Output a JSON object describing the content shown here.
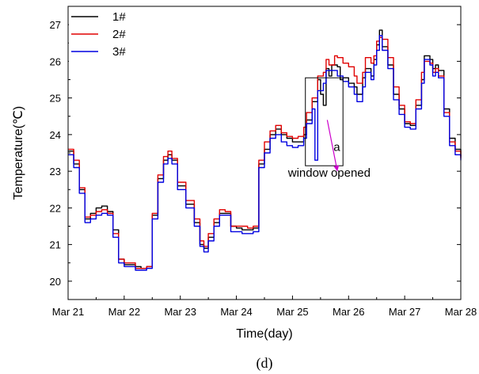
{
  "chart_data": {
    "type": "line",
    "title": "",
    "caption": "(d)",
    "xlabel": "Time(day)",
    "ylabel": "Temperature(℃)",
    "xlim": [
      0,
      7
    ],
    "ylim": [
      19.5,
      27.5
    ],
    "x_ticks": [
      0,
      1,
      2,
      3,
      4,
      5,
      6,
      7
    ],
    "x_tick_labels": [
      "Mar 21",
      "Mar 22",
      "Mar 23",
      "Mar 24",
      "Mar 25",
      "Mar 26",
      "Mar 27",
      "Mar 28"
    ],
    "y_ticks": [
      20,
      21,
      22,
      23,
      24,
      25,
      26,
      27
    ],
    "y_tick_labels": [
      "20",
      "21",
      "22",
      "23",
      "24",
      "25",
      "26",
      "27"
    ],
    "legend_position": "top-left",
    "grid": false,
    "series": [
      {
        "name": "1#",
        "color": "#000000",
        "points": [
          [
            0,
            23.55
          ],
          [
            0.1,
            23.2
          ],
          [
            0.2,
            22.5
          ],
          [
            0.3,
            21.7
          ],
          [
            0.4,
            21.85
          ],
          [
            0.5,
            22.0
          ],
          [
            0.6,
            22.05
          ],
          [
            0.7,
            21.9
          ],
          [
            0.8,
            21.4
          ],
          [
            0.9,
            20.6
          ],
          [
            1.0,
            20.45
          ],
          [
            1.1,
            20.45
          ],
          [
            1.2,
            20.4
          ],
          [
            1.3,
            20.35
          ],
          [
            1.4,
            20.4
          ],
          [
            1.5,
            21.8
          ],
          [
            1.6,
            22.8
          ],
          [
            1.7,
            23.3
          ],
          [
            1.78,
            23.45
          ],
          [
            1.85,
            23.3
          ],
          [
            1.95,
            22.6
          ],
          [
            2.1,
            22.1
          ],
          [
            2.25,
            21.6
          ],
          [
            2.35,
            21.0
          ],
          [
            2.42,
            20.9
          ],
          [
            2.5,
            21.2
          ],
          [
            2.6,
            21.6
          ],
          [
            2.7,
            21.85
          ],
          [
            2.8,
            21.85
          ],
          [
            2.9,
            21.5
          ],
          [
            3.0,
            21.45
          ],
          [
            3.1,
            21.4
          ],
          [
            3.2,
            21.4
          ],
          [
            3.3,
            21.45
          ],
          [
            3.4,
            23.2
          ],
          [
            3.5,
            23.6
          ],
          [
            3.6,
            24.0
          ],
          [
            3.7,
            24.15
          ],
          [
            3.8,
            24.0
          ],
          [
            3.9,
            23.9
          ],
          [
            4.0,
            23.8
          ],
          [
            4.1,
            23.8
          ],
          [
            4.2,
            24.0
          ],
          [
            4.25,
            24.4
          ],
          [
            4.35,
            24.9
          ],
          [
            4.45,
            25.5
          ],
          [
            4.5,
            25.1
          ],
          [
            4.55,
            24.8
          ],
          [
            4.6,
            25.8
          ],
          [
            4.65,
            25.6
          ],
          [
            4.7,
            25.9
          ],
          [
            4.8,
            25.85
          ],
          [
            4.85,
            25.5
          ],
          [
            4.9,
            25.55
          ],
          [
            5.0,
            25.4
          ],
          [
            5.1,
            25.3
          ],
          [
            5.15,
            25.1
          ],
          [
            5.25,
            25.55
          ],
          [
            5.3,
            25.8
          ],
          [
            5.4,
            25.6
          ],
          [
            5.45,
            26.05
          ],
          [
            5.5,
            26.45
          ],
          [
            5.55,
            26.85
          ],
          [
            5.6,
            26.4
          ],
          [
            5.7,
            25.9
          ],
          [
            5.8,
            25.1
          ],
          [
            5.9,
            24.7
          ],
          [
            6.0,
            24.3
          ],
          [
            6.1,
            24.25
          ],
          [
            6.2,
            24.8
          ],
          [
            6.3,
            25.5
          ],
          [
            6.35,
            26.15
          ],
          [
            6.45,
            26.05
          ],
          [
            6.5,
            25.8
          ],
          [
            6.55,
            25.9
          ],
          [
            6.6,
            25.75
          ],
          [
            6.7,
            24.7
          ],
          [
            6.8,
            23.9
          ],
          [
            6.9,
            23.6
          ],
          [
            7.0,
            23.4
          ]
        ]
      },
      {
        "name": "2#",
        "color": "#e00000",
        "points": [
          [
            0,
            23.6
          ],
          [
            0.1,
            23.3
          ],
          [
            0.2,
            22.55
          ],
          [
            0.3,
            21.75
          ],
          [
            0.4,
            21.8
          ],
          [
            0.5,
            21.9
          ],
          [
            0.6,
            21.95
          ],
          [
            0.7,
            21.85
          ],
          [
            0.8,
            21.3
          ],
          [
            0.9,
            20.6
          ],
          [
            1.0,
            20.5
          ],
          [
            1.1,
            20.5
          ],
          [
            1.2,
            20.35
          ],
          [
            1.3,
            20.35
          ],
          [
            1.4,
            20.4
          ],
          [
            1.5,
            21.85
          ],
          [
            1.6,
            22.9
          ],
          [
            1.7,
            23.4
          ],
          [
            1.78,
            23.55
          ],
          [
            1.85,
            23.35
          ],
          [
            1.95,
            22.7
          ],
          [
            2.1,
            22.2
          ],
          [
            2.25,
            21.7
          ],
          [
            2.35,
            21.1
          ],
          [
            2.42,
            20.95
          ],
          [
            2.5,
            21.3
          ],
          [
            2.6,
            21.7
          ],
          [
            2.7,
            21.95
          ],
          [
            2.8,
            21.9
          ],
          [
            2.9,
            21.5
          ],
          [
            3.0,
            21.5
          ],
          [
            3.1,
            21.5
          ],
          [
            3.2,
            21.45
          ],
          [
            3.3,
            21.5
          ],
          [
            3.4,
            23.3
          ],
          [
            3.5,
            23.8
          ],
          [
            3.6,
            24.1
          ],
          [
            3.7,
            24.25
          ],
          [
            3.8,
            24.05
          ],
          [
            3.9,
            23.95
          ],
          [
            4.0,
            23.9
          ],
          [
            4.1,
            23.95
          ],
          [
            4.2,
            24.2
          ],
          [
            4.25,
            24.6
          ],
          [
            4.35,
            25.0
          ],
          [
            4.45,
            25.6
          ],
          [
            4.55,
            25.7
          ],
          [
            4.6,
            26.05
          ],
          [
            4.65,
            25.9
          ],
          [
            4.75,
            26.15
          ],
          [
            4.8,
            26.1
          ],
          [
            4.9,
            25.95
          ],
          [
            5.0,
            25.85
          ],
          [
            5.1,
            25.6
          ],
          [
            5.15,
            25.4
          ],
          [
            5.25,
            25.7
          ],
          [
            5.3,
            26.1
          ],
          [
            5.4,
            25.95
          ],
          [
            5.45,
            26.15
          ],
          [
            5.5,
            26.55
          ],
          [
            5.55,
            26.65
          ],
          [
            5.6,
            26.6
          ],
          [
            5.7,
            26.1
          ],
          [
            5.8,
            25.3
          ],
          [
            5.9,
            24.8
          ],
          [
            6.0,
            24.35
          ],
          [
            6.1,
            24.3
          ],
          [
            6.2,
            24.95
          ],
          [
            6.3,
            25.7
          ],
          [
            6.35,
            26.0
          ],
          [
            6.45,
            25.95
          ],
          [
            6.5,
            25.7
          ],
          [
            6.55,
            25.8
          ],
          [
            6.6,
            25.6
          ],
          [
            6.7,
            24.6
          ],
          [
            6.8,
            23.8
          ],
          [
            6.9,
            23.55
          ],
          [
            7.0,
            23.35
          ]
        ]
      },
      {
        "name": "3#",
        "color": "#0000e0",
        "points": [
          [
            0,
            23.45
          ],
          [
            0.1,
            23.1
          ],
          [
            0.2,
            22.4
          ],
          [
            0.3,
            21.6
          ],
          [
            0.4,
            21.7
          ],
          [
            0.5,
            21.8
          ],
          [
            0.6,
            21.85
          ],
          [
            0.7,
            21.8
          ],
          [
            0.8,
            21.2
          ],
          [
            0.9,
            20.5
          ],
          [
            1.0,
            20.4
          ],
          [
            1.1,
            20.4
          ],
          [
            1.2,
            20.3
          ],
          [
            1.3,
            20.3
          ],
          [
            1.4,
            20.35
          ],
          [
            1.5,
            21.7
          ],
          [
            1.6,
            22.7
          ],
          [
            1.7,
            23.2
          ],
          [
            1.78,
            23.35
          ],
          [
            1.85,
            23.2
          ],
          [
            1.95,
            22.5
          ],
          [
            2.1,
            22.0
          ],
          [
            2.25,
            21.5
          ],
          [
            2.35,
            20.95
          ],
          [
            2.42,
            20.8
          ],
          [
            2.5,
            21.1
          ],
          [
            2.6,
            21.5
          ],
          [
            2.7,
            21.8
          ],
          [
            2.8,
            21.8
          ],
          [
            2.9,
            21.35
          ],
          [
            3.0,
            21.35
          ],
          [
            3.1,
            21.3
          ],
          [
            3.2,
            21.3
          ],
          [
            3.3,
            21.35
          ],
          [
            3.4,
            23.1
          ],
          [
            3.5,
            23.5
          ],
          [
            3.6,
            23.9
          ],
          [
            3.7,
            24.0
          ],
          [
            3.8,
            23.8
          ],
          [
            3.9,
            23.7
          ],
          [
            4.0,
            23.65
          ],
          [
            4.1,
            23.7
          ],
          [
            4.2,
            23.9
          ],
          [
            4.25,
            24.3
          ],
          [
            4.35,
            24.7
          ],
          [
            4.4,
            23.3
          ],
          [
            4.45,
            25.2
          ],
          [
            4.55,
            25.4
          ],
          [
            4.6,
            25.75
          ],
          [
            4.7,
            25.75
          ],
          [
            4.8,
            25.6
          ],
          [
            4.9,
            25.45
          ],
          [
            5.0,
            25.3
          ],
          [
            5.1,
            25.1
          ],
          [
            5.15,
            24.9
          ],
          [
            5.25,
            25.3
          ],
          [
            5.3,
            25.7
          ],
          [
            5.4,
            25.5
          ],
          [
            5.45,
            25.9
          ],
          [
            5.5,
            26.3
          ],
          [
            5.55,
            26.7
          ],
          [
            5.6,
            26.3
          ],
          [
            5.7,
            25.8
          ],
          [
            5.8,
            24.95
          ],
          [
            5.9,
            24.55
          ],
          [
            6.0,
            24.2
          ],
          [
            6.1,
            24.15
          ],
          [
            6.2,
            24.7
          ],
          [
            6.3,
            25.4
          ],
          [
            6.35,
            26.05
          ],
          [
            6.45,
            25.9
          ],
          [
            6.5,
            25.6
          ],
          [
            6.55,
            25.7
          ],
          [
            6.6,
            25.55
          ],
          [
            6.7,
            24.5
          ],
          [
            6.8,
            23.7
          ],
          [
            6.9,
            23.45
          ],
          [
            7.0,
            23.3
          ]
        ]
      }
    ],
    "annotations": {
      "box_label": "a",
      "arrow_label": "window opened",
      "box_range": {
        "x": [
          4.23,
          4.9
        ],
        "y": [
          23.15,
          25.55
        ]
      },
      "arrow": {
        "from": [
          4.62,
          24.4
        ],
        "to": [
          4.8,
          23.0
        ]
      },
      "arrow_color": "#cc00cc"
    }
  }
}
